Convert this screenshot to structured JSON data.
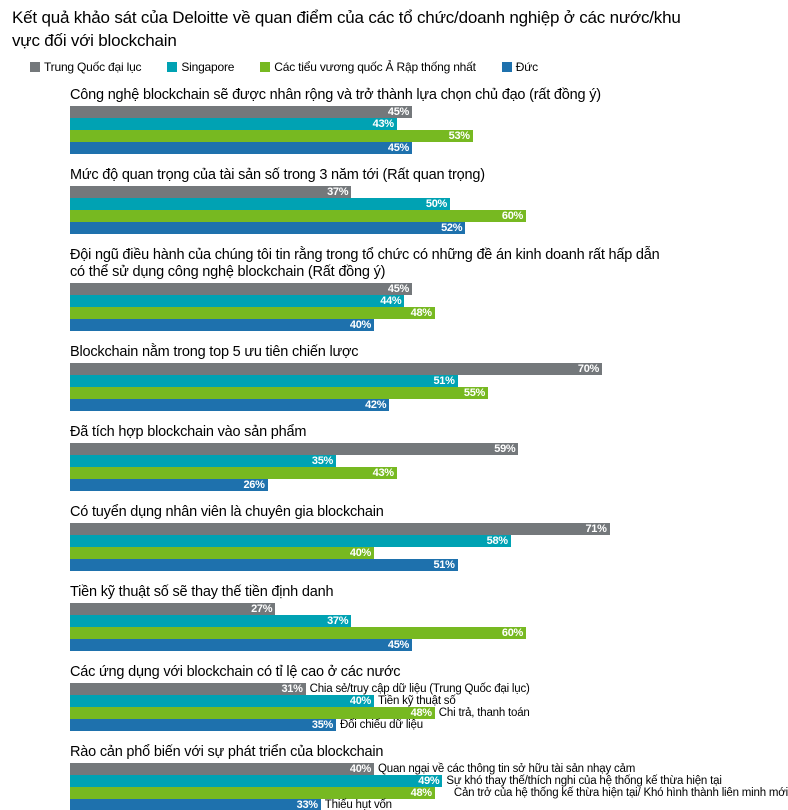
{
  "title": "Kết quả khảo sát của Deloitte về quan điểm của các tổ chức/doanh nghiệp ở các nước/khu vực đối với blockchain",
  "chart_data": {
    "type": "bar",
    "orientation": "horizontal",
    "value_unit": "%",
    "x_range": [
      0,
      100
    ],
    "legend_position": "top",
    "grid": false,
    "series": [
      {
        "id": "mainland-china",
        "name": "Trung Quốc đại lục",
        "color": "#74787b"
      },
      {
        "id": "singapore",
        "name": "Singapore",
        "color": "#00a2b3"
      },
      {
        "id": "uae",
        "name": "Các tiểu vương quốc Ả Rập thống nhất",
        "color": "#77b921"
      },
      {
        "id": "germany",
        "name": "Đức",
        "color": "#1e71ad"
      }
    ],
    "groups": [
      {
        "title": "Công nghệ blockchain sẽ được nhân rộng và trở thành lựa chọn chủ đạo (rất đồng ý)",
        "values": [
          45,
          43,
          53,
          45
        ],
        "value_labels": [
          "45%",
          "43%",
          "53%",
          "45%"
        ]
      },
      {
        "title": "Mức độ quan trọng của tài sản số trong 3 năm tới (Rất quan trọng)",
        "values": [
          37,
          50,
          60,
          52
        ],
        "value_labels": [
          "37%",
          "50%",
          "60%",
          "52%"
        ]
      },
      {
        "title": "Đội ngũ điều hành của chúng tôi tin rằng trong tổ chức có những đề án kinh doanh rất hấp dẫn có thể sử dụng công nghệ blockchain (Rất đồng ý)",
        "values": [
          45,
          44,
          48,
          40
        ],
        "value_labels": [
          "45%",
          "44%",
          "48%",
          "40%"
        ]
      },
      {
        "title": "Blockchain nằm trong top 5 ưu tiên chiến lược",
        "values": [
          70,
          51,
          55,
          42
        ],
        "value_labels": [
          "70%",
          "51%",
          "55%",
          "42%"
        ]
      },
      {
        "title": "Đã tích hợp blockchain vào sản phẩm",
        "values": [
          59,
          35,
          43,
          26
        ],
        "value_labels": [
          "59%",
          "35%",
          "43%",
          "26%"
        ]
      },
      {
        "title": "Có tuyển dụng nhân viên là chuyên gia blockchain",
        "values": [
          71,
          58,
          40,
          51
        ],
        "value_labels": [
          "71%",
          "58%",
          "40%",
          "51%"
        ]
      },
      {
        "title": "Tiền kỹ thuật số sẽ thay thế tiền định danh",
        "values": [
          27,
          37,
          60,
          45
        ],
        "value_labels": [
          "27%",
          "37%",
          "60%",
          "45%"
        ]
      },
      {
        "title": "Các ứng dụng với blockchain có tỉ lệ cao ở các nước",
        "values": [
          31,
          40,
          48,
          35
        ],
        "value_labels": [
          "31%",
          "40%",
          "48%",
          "35%"
        ],
        "side_labels": [
          "Chia sẻ/truy cập dữ liệu (Trung Quốc đại lục)",
          "Tiền kỹ thuật số",
          "Chi trả, thanh toán",
          "Đối chiếu dữ liệu"
        ]
      },
      {
        "title": "Rào cản phổ biến với sự phát triển của blockchain",
        "values": [
          40,
          49,
          48,
          33
        ],
        "value_labels": [
          "40%",
          "49%",
          "48%",
          "33%"
        ],
        "side_labels": [
          "Quan ngại về các thông tin sở hữu tài sản nhạy cảm",
          "Sự khó thay thế/thích nghi của hệ thống kế thừa hiện tại",
          "Cản trở của hệ thống kế thừa hiện tại/ Khó hình thành liên minh mới",
          "Thiếu hụt vốn"
        ]
      }
    ]
  }
}
